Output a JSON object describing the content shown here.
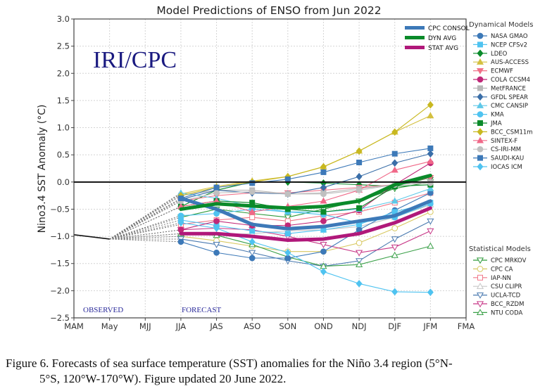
{
  "chart_data": {
    "type": "line",
    "title": "Model Predictions of ENSO from Jun 2022",
    "watermark": "IRI/CPC",
    "ylabel": "Nino3.4 SST Anomaly (°C)",
    "xlabel": "",
    "ylim": [
      -2.5,
      3.0
    ],
    "yticks": [
      "3.0",
      "2.5",
      "2.0",
      "1.5",
      "1.0",
      "0.5",
      "0.0",
      "−0.5",
      "−1.0",
      "−1.5",
      "−2.0",
      "−2.5"
    ],
    "ytick_values": [
      3.0,
      2.5,
      2.0,
      1.5,
      1.0,
      0.5,
      0.0,
      -0.5,
      -1.0,
      -1.5,
      -2.0,
      -2.5
    ],
    "categories": [
      "MAM",
      "May",
      "MJJ",
      "JJA",
      "JAS",
      "ASO",
      "SON",
      "OND",
      "NDJ",
      "DJF",
      "JFM",
      "FMA"
    ],
    "grid": true,
    "zero_line": true,
    "annotations": {
      "observed": "OBSERVED",
      "forecast": "FORECAST"
    },
    "observed": {
      "x": [
        0,
        1
      ],
      "values": [
        -0.97,
        -1.05
      ],
      "color": "#111111"
    },
    "forecast_start_index": 3,
    "legend_main": [
      {
        "name": "CPC CONSOL",
        "color": "#3d79b8"
      },
      {
        "name": "DYN AVG",
        "color": "#0a8a2a"
      },
      {
        "name": "STAT AVG",
        "color": "#b0187a"
      }
    ],
    "legend_dyn_title": "Dynamical Models",
    "legend_stat_title": "Statistical Models",
    "averages": [
      {
        "name": "CPC CONSOL",
        "color": "#3d79b8",
        "values": [
          -0.3,
          -0.5,
          -0.78,
          -0.86,
          -0.82,
          -0.72,
          -0.62,
          -0.35
        ]
      },
      {
        "name": "DYN AVG",
        "color": "#0a8a2a",
        "values": [
          -0.5,
          -0.4,
          -0.44,
          -0.48,
          -0.45,
          -0.35,
          -0.05,
          0.12
        ]
      },
      {
        "name": "STAT AVG",
        "color": "#b0187a",
        "values": [
          -0.95,
          -0.95,
          -1.0,
          -1.07,
          -1.05,
          -0.95,
          -0.75,
          -0.48
        ]
      }
    ],
    "dynamical_models": [
      {
        "name": "NASA GMAO",
        "color": "#3d79b8",
        "marker": "circle",
        "values": [
          -1.1,
          -1.3,
          -1.4,
          -1.4,
          -1.28,
          -0.88,
          -0.52,
          -0.2
        ]
      },
      {
        "name": "NCEP CFSv2",
        "color": "#4fc3f0",
        "marker": "square",
        "values": [
          -0.7,
          -0.8,
          -0.9,
          -0.95,
          -0.88,
          -0.78,
          -0.55,
          -0.38
        ]
      },
      {
        "name": "LDEO",
        "color": "#0a8a2a",
        "marker": "diamond",
        "values": [
          -0.45,
          -0.15,
          0.0,
          0.0,
          -0.02,
          -0.05,
          -0.08,
          0.08
        ]
      },
      {
        "name": "AUS-ACCESS",
        "color": "#d4c040",
        "marker": "triangle-up",
        "values": [
          -0.22,
          -0.08,
          0.02,
          0.1,
          0.28,
          0.57,
          0.92,
          1.22
        ]
      },
      {
        "name": "ECMWF",
        "color": "#f07088",
        "marker": "triangle-down",
        "values": [
          -0.35,
          -0.25,
          -0.2,
          -0.2,
          -0.15,
          -0.1,
          -0.05,
          0.08
        ]
      },
      {
        "name": "COLA CCSM4",
        "color": "#c02878",
        "marker": "circle",
        "values": [
          -0.88,
          -0.72,
          -0.8,
          -0.8,
          -0.72,
          -0.52,
          -0.05,
          0.35
        ]
      },
      {
        "name": "MetFRANCE",
        "color": "#b8b8b8",
        "marker": "square",
        "values": [
          -0.25,
          -0.15,
          -0.15,
          -0.22,
          -0.2,
          -0.12,
          -0.05,
          0.0
        ]
      },
      {
        "name": "GFDL SPEAR",
        "color": "#3a6ea8",
        "marker": "diamond",
        "values": [
          -0.32,
          -0.15,
          -0.2,
          -0.22,
          -0.1,
          0.1,
          0.35,
          0.52
        ]
      },
      {
        "name": "CMC CANSIP",
        "color": "#5ec8e8",
        "marker": "triangle-up",
        "values": [
          -0.2,
          -0.3,
          -0.45,
          -0.55,
          -0.55,
          -0.5,
          -0.35,
          -0.12
        ]
      },
      {
        "name": "KMA",
        "color": "#4fc3f0",
        "marker": "circle",
        "values": [
          -0.62,
          -0.58,
          -0.5,
          -0.55,
          -0.6,
          -0.75,
          -0.65,
          -0.4
        ]
      },
      {
        "name": "JMA",
        "color": "#0a8a2a",
        "marker": "square",
        "values": [
          -0.45,
          -0.35,
          -0.38,
          -0.5,
          -0.55,
          -0.48,
          -0.08,
          -0.05
        ]
      },
      {
        "name": "BCC_CSM11m",
        "color": "#c8b820",
        "marker": "diamond",
        "values": [
          -0.25,
          -0.1,
          0.0,
          0.1,
          0.28,
          0.57,
          0.92,
          1.42
        ]
      },
      {
        "name": "SINTEX-F",
        "color": "#f06888",
        "marker": "triangle-up",
        "values": [
          -0.45,
          -0.35,
          -0.55,
          -0.45,
          -0.35,
          -0.15,
          0.22,
          0.38
        ]
      },
      {
        "name": "CS-IRI-MM",
        "color": "#c0c0c0",
        "marker": "circle",
        "values": [
          -0.35,
          -0.2,
          -0.18,
          -0.22,
          -0.22,
          -0.15,
          -0.05,
          -0.02
        ]
      },
      {
        "name": "SAUDI-KAU",
        "color": "#3d79b8",
        "marker": "square",
        "values": [
          -0.3,
          -0.1,
          -0.02,
          0.05,
          0.18,
          0.36,
          0.52,
          0.62
        ]
      },
      {
        "name": "IOCAS ICM",
        "color": "#4fc3f0",
        "marker": "diamond",
        "values": [
          -0.75,
          -0.85,
          -1.1,
          -1.3,
          -1.65,
          -1.87,
          -2.02,
          -2.03
        ]
      }
    ],
    "statistical_models": [
      {
        "name": "CPC MRKOV",
        "color": "#2e9a3a",
        "marker": "triangle-down",
        "values": [
          -0.65,
          -0.5,
          -0.58,
          -0.65,
          -0.5,
          -0.35,
          -0.12,
          0.0
        ]
      },
      {
        "name": "CPC CA",
        "color": "#d8c860",
        "marker": "circle",
        "values": [
          -1.0,
          -1.08,
          -1.18,
          -1.28,
          -1.28,
          -1.12,
          -0.85,
          -0.55
        ]
      },
      {
        "name": "IAP-NN",
        "color": "#f07888",
        "marker": "square",
        "values": [
          -0.78,
          -0.7,
          -0.65,
          -0.72,
          -0.62,
          -0.55,
          -0.38,
          -0.2
        ]
      },
      {
        "name": "CSU CLIPR",
        "color": "#c8c8c8",
        "marker": "triangle-up",
        "values": [
          -0.95,
          -0.98,
          -0.95,
          -0.9,
          -0.88,
          -0.82,
          -0.65,
          -0.42
        ]
      },
      {
        "name": "UCLA-TCD",
        "color": "#4a7ab0",
        "marker": "triangle-down",
        "values": [
          -1.05,
          -1.15,
          -1.3,
          -1.45,
          -1.55,
          -1.45,
          -1.05,
          -0.72
        ]
      },
      {
        "name": "BCC_RZDM",
        "color": "#c83888",
        "marker": "triangle-down",
        "values": [
          -0.88,
          -0.85,
          -0.88,
          -1.0,
          -1.15,
          -1.3,
          -1.2,
          -0.9
        ]
      },
      {
        "name": "NTU CODA",
        "color": "#3aa048",
        "marker": "triangle-up",
        "values": [
          -0.95,
          -0.98,
          -1.15,
          -1.38,
          -1.55,
          -1.52,
          -1.35,
          -1.18
        ]
      }
    ]
  },
  "caption": {
    "line1": "Figure 6. Forecasts of sea surface temperature (SST) anomalies for the Niño 3.4 region (5°N-",
    "line2": "5°S, 120°W-170°W). Figure updated 20 June 2022."
  }
}
